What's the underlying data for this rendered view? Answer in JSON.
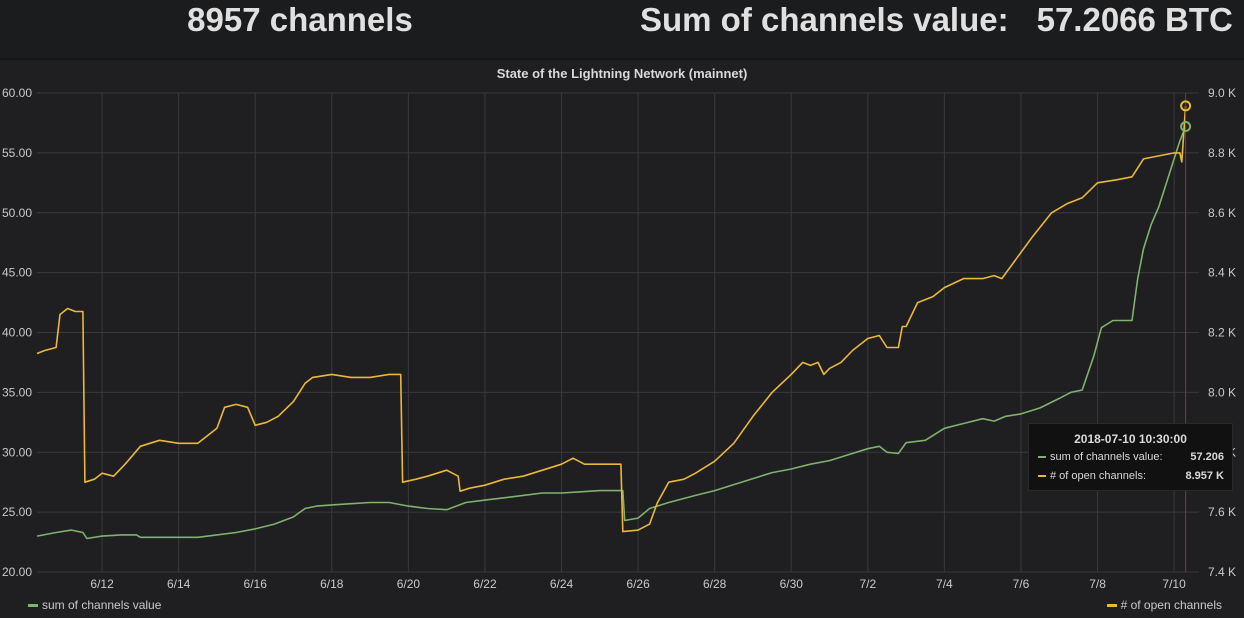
{
  "stats": {
    "channels_count": "8957 channels",
    "sum_label": "Sum of channels value:",
    "sum_value": "57.2066 BTC"
  },
  "panel": {
    "title": "State of the Lightning Network (mainnet)"
  },
  "legend": {
    "left": "sum of channels value",
    "right": "# of open channels"
  },
  "tooltip": {
    "time": "2018-07-10 10:30:00",
    "rows": [
      {
        "label": "sum of channels value:",
        "value": "57.206"
      },
      {
        "label": "# of open channels:",
        "value": "8.957 K"
      }
    ]
  },
  "colors": {
    "green": "#7eb26d",
    "yellow": "#eab839",
    "background": "#1f1f21",
    "grid": "#3a3a3c",
    "cursor": "#c4162a"
  },
  "chart_data": {
    "type": "line",
    "title": "State of the Lightning Network (mainnet)",
    "xlim": [
      10.3,
      40.65
    ],
    "x_ticks": [
      {
        "x": 12,
        "label": "6/12"
      },
      {
        "x": 14,
        "label": "6/14"
      },
      {
        "x": 16,
        "label": "6/16"
      },
      {
        "x": 18,
        "label": "6/18"
      },
      {
        "x": 20,
        "label": "6/20"
      },
      {
        "x": 22,
        "label": "6/22"
      },
      {
        "x": 24,
        "label": "6/24"
      },
      {
        "x": 26,
        "label": "6/26"
      },
      {
        "x": 28,
        "label": "6/28"
      },
      {
        "x": 30,
        "label": "6/30"
      },
      {
        "x": 32,
        "label": "7/2"
      },
      {
        "x": 34,
        "label": "7/4"
      },
      {
        "x": 36,
        "label": "7/6"
      },
      {
        "x": 38,
        "label": "7/8"
      },
      {
        "x": 40,
        "label": "7/10"
      }
    ],
    "x_note": "x values are days of June 2018 (31 = 7/1, 40 = 7/10)",
    "y_left": {
      "ylim": [
        20,
        60
      ],
      "ticks": [
        "20.00",
        "25.00",
        "30.00",
        "35.00",
        "40.00",
        "45.00",
        "50.00",
        "55.00",
        "60.00"
      ]
    },
    "y_right": {
      "ylim": [
        7400,
        9000
      ],
      "ticks": [
        "7.4 K",
        "7.6 K",
        "7.8 K",
        "8.0 K",
        "8.2 K",
        "8.4 K",
        "8.6 K",
        "8.8 K",
        "9.0 K"
      ]
    },
    "grid": true,
    "legend_position": "bottom",
    "series": [
      {
        "name": "sum of channels value",
        "axis": "left",
        "color": "#7eb26d",
        "points": [
          [
            10.3,
            23.0
          ],
          [
            10.8,
            23.3
          ],
          [
            11.2,
            23.5
          ],
          [
            11.5,
            23.3
          ],
          [
            11.6,
            22.8
          ],
          [
            12.0,
            23.0
          ],
          [
            12.5,
            23.1
          ],
          [
            12.9,
            23.1
          ],
          [
            13.0,
            22.9
          ],
          [
            13.8,
            22.9
          ],
          [
            14.5,
            22.9
          ],
          [
            15.0,
            23.1
          ],
          [
            15.5,
            23.3
          ],
          [
            16.0,
            23.6
          ],
          [
            16.5,
            24.0
          ],
          [
            17.0,
            24.6
          ],
          [
            17.3,
            25.3
          ],
          [
            17.6,
            25.5
          ],
          [
            18.0,
            25.6
          ],
          [
            18.5,
            25.7
          ],
          [
            19.0,
            25.8
          ],
          [
            19.5,
            25.8
          ],
          [
            20.0,
            25.5
          ],
          [
            20.5,
            25.3
          ],
          [
            21.0,
            25.2
          ],
          [
            21.5,
            25.8
          ],
          [
            22.0,
            26.0
          ],
          [
            22.5,
            26.2
          ],
          [
            23.0,
            26.4
          ],
          [
            23.5,
            26.6
          ],
          [
            24.0,
            26.6
          ],
          [
            24.5,
            26.7
          ],
          [
            25.0,
            26.8
          ],
          [
            25.6,
            26.8
          ],
          [
            25.65,
            24.3
          ],
          [
            26.0,
            24.5
          ],
          [
            26.3,
            25.3
          ],
          [
            26.8,
            25.8
          ],
          [
            27.5,
            26.4
          ],
          [
            28.0,
            26.8
          ],
          [
            28.5,
            27.3
          ],
          [
            29.0,
            27.8
          ],
          [
            29.5,
            28.3
          ],
          [
            30.0,
            28.6
          ],
          [
            30.5,
            29.0
          ],
          [
            31.0,
            29.3
          ],
          [
            31.5,
            29.8
          ],
          [
            32.0,
            30.3
          ],
          [
            32.3,
            30.5
          ],
          [
            32.5,
            30.0
          ],
          [
            32.8,
            29.9
          ],
          [
            33.0,
            30.8
          ],
          [
            33.5,
            31.0
          ],
          [
            34.0,
            32.0
          ],
          [
            34.5,
            32.4
          ],
          [
            35.0,
            32.8
          ],
          [
            35.3,
            32.6
          ],
          [
            35.6,
            33.0
          ],
          [
            36.0,
            33.2
          ],
          [
            36.5,
            33.7
          ],
          [
            37.0,
            34.5
          ],
          [
            37.3,
            35.0
          ],
          [
            37.6,
            35.2
          ],
          [
            37.9,
            38.0
          ],
          [
            38.1,
            40.4
          ],
          [
            38.4,
            41.0
          ],
          [
            38.7,
            41.0
          ],
          [
            38.9,
            41.0
          ],
          [
            39.05,
            44.5
          ],
          [
            39.2,
            47.0
          ],
          [
            39.4,
            49.0
          ],
          [
            39.6,
            50.5
          ],
          [
            39.8,
            52.5
          ],
          [
            40.0,
            54.5
          ],
          [
            40.15,
            56.0
          ],
          [
            40.3,
            57.2
          ]
        ]
      },
      {
        "name": "# of open channels",
        "axis": "right",
        "color": "#eab839",
        "points": [
          [
            10.3,
            8130
          ],
          [
            10.5,
            8140
          ],
          [
            10.8,
            8150
          ],
          [
            10.9,
            8260
          ],
          [
            11.1,
            8280
          ],
          [
            11.3,
            8270
          ],
          [
            11.5,
            8270
          ],
          [
            11.55,
            7700
          ],
          [
            11.8,
            7710
          ],
          [
            12.0,
            7730
          ],
          [
            12.3,
            7720
          ],
          [
            12.6,
            7760
          ],
          [
            13.0,
            7820
          ],
          [
            13.5,
            7840
          ],
          [
            14.0,
            7830
          ],
          [
            14.5,
            7830
          ],
          [
            14.8,
            7860
          ],
          [
            15.0,
            7880
          ],
          [
            15.2,
            7950
          ],
          [
            15.5,
            7960
          ],
          [
            15.8,
            7950
          ],
          [
            16.0,
            7890
          ],
          [
            16.3,
            7900
          ],
          [
            16.6,
            7920
          ],
          [
            17.0,
            7970
          ],
          [
            17.3,
            8030
          ],
          [
            17.5,
            8050
          ],
          [
            18.0,
            8060
          ],
          [
            18.5,
            8050
          ],
          [
            19.0,
            8050
          ],
          [
            19.5,
            8060
          ],
          [
            19.8,
            8060
          ],
          [
            19.85,
            7700
          ],
          [
            20.2,
            7710
          ],
          [
            20.5,
            7720
          ],
          [
            21.0,
            7740
          ],
          [
            21.3,
            7720
          ],
          [
            21.35,
            7670
          ],
          [
            21.6,
            7680
          ],
          [
            22.0,
            7690
          ],
          [
            22.5,
            7710
          ],
          [
            23.0,
            7720
          ],
          [
            23.5,
            7740
          ],
          [
            24.0,
            7760
          ],
          [
            24.3,
            7780
          ],
          [
            24.6,
            7760
          ],
          [
            25.0,
            7760
          ],
          [
            25.55,
            7760
          ],
          [
            25.6,
            7535
          ],
          [
            26.0,
            7540
          ],
          [
            26.3,
            7560
          ],
          [
            26.5,
            7630
          ],
          [
            26.8,
            7700
          ],
          [
            27.2,
            7710
          ],
          [
            27.5,
            7730
          ],
          [
            28.0,
            7770
          ],
          [
            28.5,
            7830
          ],
          [
            29.0,
            7920
          ],
          [
            29.5,
            8000
          ],
          [
            30.0,
            8060
          ],
          [
            30.3,
            8100
          ],
          [
            30.5,
            8090
          ],
          [
            30.7,
            8100
          ],
          [
            30.85,
            8060
          ],
          [
            31.0,
            8080
          ],
          [
            31.3,
            8100
          ],
          [
            31.6,
            8140
          ],
          [
            32.0,
            8180
          ],
          [
            32.3,
            8190
          ],
          [
            32.5,
            8150
          ],
          [
            32.8,
            8150
          ],
          [
            32.9,
            8220
          ],
          [
            33.0,
            8220
          ],
          [
            33.3,
            8300
          ],
          [
            33.7,
            8320
          ],
          [
            34.0,
            8350
          ],
          [
            34.5,
            8380
          ],
          [
            35.0,
            8380
          ],
          [
            35.3,
            8390
          ],
          [
            35.5,
            8380
          ],
          [
            35.9,
            8450
          ],
          [
            36.3,
            8520
          ],
          [
            36.8,
            8600
          ],
          [
            37.2,
            8630
          ],
          [
            37.6,
            8650
          ],
          [
            38.0,
            8700
          ],
          [
            38.5,
            8710
          ],
          [
            38.9,
            8720
          ],
          [
            39.2,
            8780
          ],
          [
            39.6,
            8790
          ],
          [
            40.0,
            8800
          ],
          [
            40.15,
            8800
          ],
          [
            40.2,
            8770
          ],
          [
            40.3,
            8957
          ]
        ]
      }
    ],
    "hover": {
      "x": 40.3,
      "time": "2018-07-10 10:30:00"
    }
  }
}
